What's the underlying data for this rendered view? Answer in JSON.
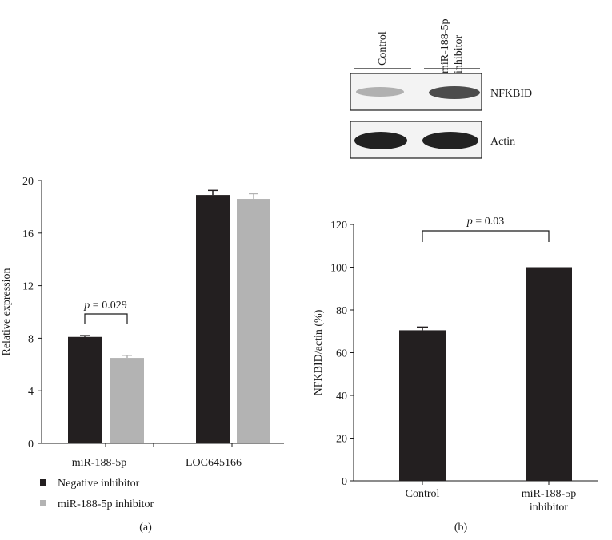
{
  "panels": {
    "a_label": "(a)",
    "b_label": "(b)"
  },
  "blot": {
    "lanes": [
      "Control",
      "miR-188-5p\ninhibitor"
    ],
    "rows": [
      "NFKBID",
      "Actin"
    ]
  },
  "chart_data": [
    {
      "type": "bar",
      "title": "",
      "xlabel": "",
      "ylabel": "Relative expression",
      "categories": [
        "miR-188-5p",
        "LOC645166"
      ],
      "series": [
        {
          "name": "Negative inhibitor",
          "color": "#231f20",
          "values": [
            8.1,
            18.9
          ],
          "errors": [
            0.1,
            0.35
          ]
        },
        {
          "name": "miR-188-5p inhibitor",
          "color": "#b3b3b3",
          "values": [
            6.5,
            18.6
          ],
          "errors": [
            0.2,
            0.4
          ]
        }
      ],
      "ylim": [
        0,
        20
      ],
      "yticks": [
        0,
        4,
        8,
        12,
        16,
        20
      ],
      "grid": false,
      "legend": "bottom-left",
      "annotations": [
        {
          "text": "p = 0.029",
          "category": "miR-188-5p"
        }
      ]
    },
    {
      "type": "bar",
      "title": "",
      "xlabel": "",
      "ylabel": "NFKBID/actin (%)",
      "categories": [
        "Control",
        "miR-188-5p\ninhibitor"
      ],
      "series": [
        {
          "color": "#231f20",
          "values": [
            70.5,
            100
          ],
          "errors": [
            1.5,
            0
          ]
        }
      ],
      "ylim": [
        0,
        120
      ],
      "yticks": [
        0,
        20,
        40,
        60,
        80,
        100,
        120
      ],
      "grid": false,
      "legend": "none",
      "annotations": [
        {
          "text": "p = 0.03",
          "between": [
            "Control",
            "miR-188-5p\ninhibitor"
          ]
        }
      ]
    }
  ]
}
